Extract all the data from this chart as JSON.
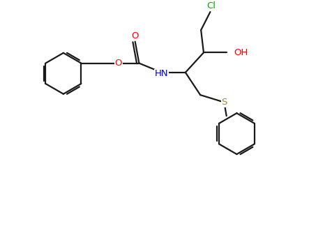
{
  "bg_color": "#ffffff",
  "bond_color": "#1a1a1a",
  "atom_colors": {
    "O": "#ff0000",
    "N": "#0000cc",
    "S": "#999900",
    "Cl": "#00aa00"
  },
  "line_width": 1.6,
  "font_size": 9.5,
  "figsize": [
    4.76,
    3.24
  ],
  "dpi": 100
}
